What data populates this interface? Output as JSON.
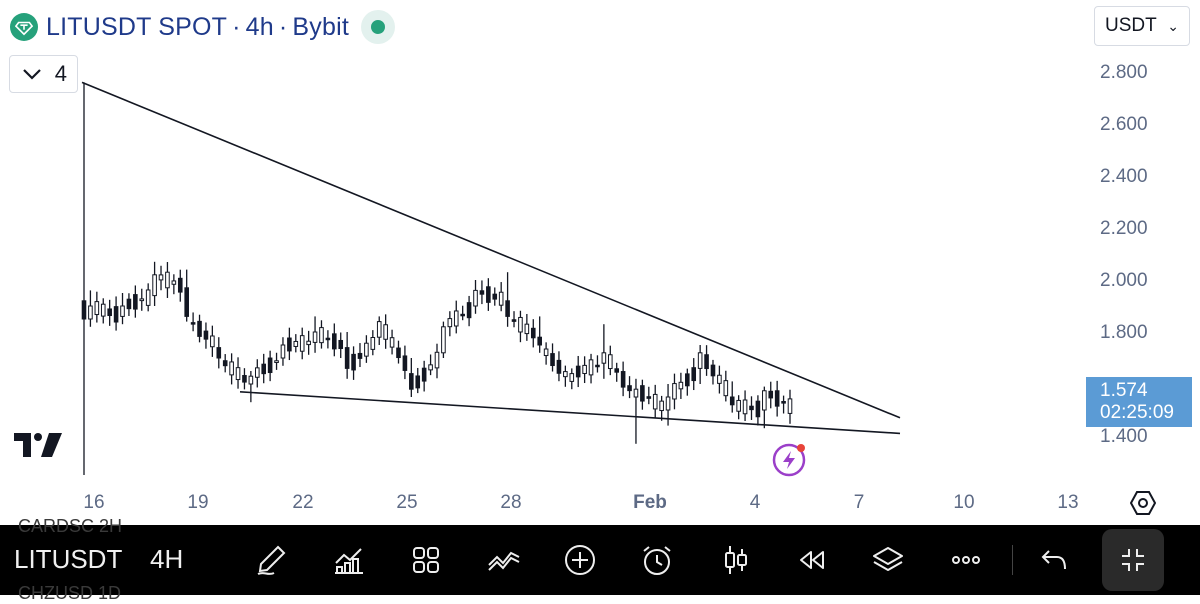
{
  "header": {
    "symbol": "LITUSDT SPOT",
    "interval": "4h",
    "exchange": "Bybit",
    "separator": "·",
    "coin_icon": "tether-diamond-icon",
    "status_icon": "market-open-dot-icon"
  },
  "currency_select": {
    "value": "USDT",
    "icon": "chevron-down-icon"
  },
  "indicator_toggle": {
    "count": "4",
    "icon": "chevron-down-icon"
  },
  "price_axis": {
    "ticks": [
      "2.800",
      "2.600",
      "2.400",
      "2.200",
      "2.000",
      "1.800",
      "1.400"
    ]
  },
  "time_axis": {
    "ticks": [
      "16",
      "19",
      "22",
      "25",
      "28",
      "Feb",
      "4",
      "7",
      "10",
      "13"
    ],
    "emphasized": "Feb"
  },
  "price_label": {
    "price": "1.574",
    "countdown": "02:25:09",
    "color": "#5b9bd5"
  },
  "colors": {
    "candle": "#131722",
    "trendline": "#131722",
    "accent": "#5b9bd5",
    "brand_green": "#26a17b"
  },
  "chart_data": {
    "type": "candlestick",
    "symbol": "LITUSDT",
    "timeframe": "4h",
    "y_unit": "USDT",
    "approx_ohlc": [
      {
        "x": "Jan 15",
        "o": 1.92,
        "h": 2.76,
        "l": 1.25,
        "c": 1.85
      },
      {
        "x": "Jan 16",
        "o": 1.85,
        "h": 1.96,
        "l": 1.82,
        "c": 1.9
      },
      {
        "x": "Jan 17",
        "o": 1.86,
        "h": 1.95,
        "l": 1.83,
        "c": 1.9
      },
      {
        "x": "Jan 18",
        "o": 1.94,
        "h": 2.07,
        "l": 1.9,
        "c": 2.02
      },
      {
        "x": "Jan 19",
        "o": 1.97,
        "h": 2.04,
        "l": 1.84,
        "c": 1.86
      },
      {
        "x": "Jan 20",
        "o": 1.74,
        "h": 1.78,
        "l": 1.66,
        "c": 1.7
      },
      {
        "x": "Jan 21",
        "o": 1.6,
        "h": 1.65,
        "l": 1.53,
        "c": 1.63
      },
      {
        "x": "Jan 22",
        "o": 1.7,
        "h": 1.78,
        "l": 1.67,
        "c": 1.75
      },
      {
        "x": "Jan 23",
        "o": 1.76,
        "h": 1.86,
        "l": 1.72,
        "c": 1.8
      },
      {
        "x": "Jan 24",
        "o": 1.74,
        "h": 1.8,
        "l": 1.62,
        "c": 1.66
      },
      {
        "x": "Jan 25",
        "o": 1.78,
        "h": 1.86,
        "l": 1.75,
        "c": 1.84
      },
      {
        "x": "Jan 26",
        "o": 1.64,
        "h": 1.7,
        "l": 1.55,
        "c": 1.58
      },
      {
        "x": "Jan 27",
        "o": 1.72,
        "h": 1.84,
        "l": 1.7,
        "c": 1.82
      },
      {
        "x": "Jan 28",
        "o": 1.9,
        "h": 2.0,
        "l": 1.87,
        "c": 1.96
      },
      {
        "x": "Jan 29",
        "o": 1.92,
        "h": 2.03,
        "l": 1.82,
        "c": 1.86
      },
      {
        "x": "Jan 30",
        "o": 1.78,
        "h": 1.86,
        "l": 1.72,
        "c": 1.75
      },
      {
        "x": "Jan 31",
        "o": 1.61,
        "h": 1.66,
        "l": 1.58,
        "c": 1.64
      },
      {
        "x": "Feb 1",
        "o": 1.68,
        "h": 1.83,
        "l": 1.62,
        "c": 1.72
      },
      {
        "x": "Feb 2",
        "o": 1.55,
        "h": 1.62,
        "l": 1.37,
        "c": 1.58
      },
      {
        "x": "Feb 3",
        "o": 1.5,
        "h": 1.6,
        "l": 1.44,
        "c": 1.55
      },
      {
        "x": "Feb 3 PM",
        "o": 1.66,
        "h": 1.75,
        "l": 1.6,
        "c": 1.72
      },
      {
        "x": "Feb 4",
        "o": 1.55,
        "h": 1.61,
        "l": 1.49,
        "c": 1.52
      },
      {
        "x": "Feb 5",
        "o": 1.5,
        "h": 1.59,
        "l": 1.43,
        "c": 1.574
      }
    ],
    "trendlines": [
      {
        "name": "upper",
        "from": {
          "x": "Jan 15",
          "y": 2.76
        },
        "to": {
          "x": "Feb 8",
          "y": 1.47
        }
      },
      {
        "name": "lower",
        "from": {
          "x": "Jan 20",
          "y": 1.57
        },
        "to": {
          "x": "Feb 8",
          "y": 1.41
        }
      }
    ],
    "last_price": 1.574,
    "y_range": [
      1.3,
      2.85
    ]
  },
  "toolbar": {
    "symbol": "LITUSDT",
    "interval": "4H",
    "ghost_top": "CARDSC   2H",
    "ghost_bottom": "CHZUSD   1D",
    "icons": [
      "pen-draw-icon",
      "indicators-chart-icon",
      "grid-layout-icon",
      "compare-lines-icon",
      "add-plus-icon",
      "alarm-clock-icon",
      "candle-style-icon",
      "replay-rewind-icon",
      "layers-icon",
      "more-dots-icon",
      "undo-icon",
      "exit-fullscreen-icon"
    ]
  },
  "branding": {
    "logo": "tradingview-logo-icon",
    "bolt": "lightning-bolt-icon",
    "settings": "chart-settings-hex-icon"
  }
}
